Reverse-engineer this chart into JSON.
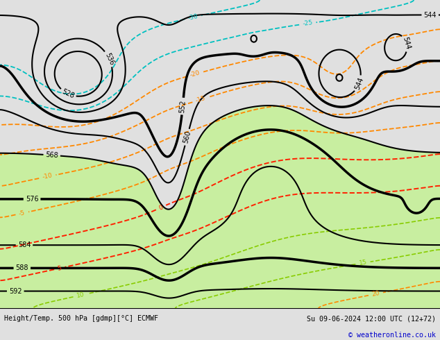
{
  "title_left": "Height/Temp. 500 hPa [gdmp][°C] ECMWF",
  "title_right": "Su 09-06-2024 12:00 UTC (12+72)",
  "copyright": "© weatheronline.co.uk",
  "bg_color": "#e0e0e0",
  "map_bg": "#d8d8d8",
  "green_fill": "#c8eea0",
  "footer_bg": "#f0f0f0",
  "copyright_color": "#0000cc"
}
